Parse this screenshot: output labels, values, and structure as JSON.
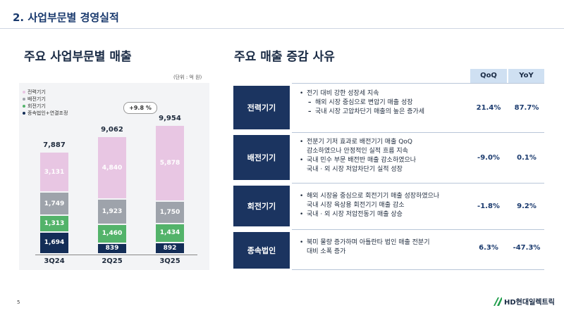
{
  "header": {
    "title": "2. 사업부문별 경영실적"
  },
  "left": {
    "title": "주요 사업부문별 매출",
    "unit": "(단위 : 억 원)",
    "growth_badge": "+9.8 %"
  },
  "right": {
    "title": "주요 매출 증감 사유",
    "col_qoq": "QoQ",
    "col_yoy": "YoY"
  },
  "chart_data": {
    "type": "bar",
    "stacked": true,
    "categories": [
      "3Q24",
      "2Q25",
      "3Q25"
    ],
    "totals": [
      "7,887",
      "9,062",
      "9,954"
    ],
    "series": [
      {
        "name": "종속법인+연결조정",
        "color": "#132d57",
        "values": [
          1694,
          839,
          892
        ],
        "labels": [
          "1,694",
          "839",
          "892"
        ]
      },
      {
        "name": "회전기기",
        "color": "#53b36a",
        "values": [
          1313,
          1460,
          1434
        ],
        "labels": [
          "1,313",
          "1,460",
          "1,434"
        ]
      },
      {
        "name": "배전기기",
        "color": "#9ea3ab",
        "values": [
          1749,
          1923,
          1750
        ],
        "labels": [
          "1,749",
          "1,923",
          "1,750"
        ]
      },
      {
        "name": "전력기기",
        "color": "#e8c6e3",
        "values": [
          3131,
          4840,
          5878
        ],
        "labels": [
          "3,131",
          "4,840",
          "5,878"
        ]
      }
    ],
    "legend": [
      "전력기기",
      "배전기기",
      "회전기기",
      "종속법인+연결조정"
    ]
  },
  "rows": [
    {
      "label": "전력기기",
      "bullets": [
        {
          "text": "전기 대비 강한 성장세 지속",
          "subs": [
            "해외 시장 중심으로 변압기 매출 성장",
            "국내 시장 고압차단기 매출의 높은 증가세"
          ]
        }
      ],
      "qoq": "21.4%",
      "yoy": "87.7%"
    },
    {
      "label": "배전기기",
      "bullets": [
        {
          "lines": [
            "전분기 기저 효과로 배전기기 매출 QoQ",
            "감소하였으나 안정적인 실적 흐름 지속"
          ]
        },
        {
          "lines": [
            "국내 민수 부문 배전반 매출 감소하였으나",
            "국내 · 외 시장 저압차단기 실적 성장"
          ]
        }
      ],
      "qoq": "-9.0%",
      "yoy": "0.1%"
    },
    {
      "label": "회전기기",
      "bullets": [
        {
          "lines": [
            "해외 시장을 중심으로 회전기기 매출 성장하였으나",
            "국내 시장 육상용 회전기기 매출 감소"
          ]
        },
        {
          "lines": [
            "국내 · 외 시장 저압전동기 매출 상승"
          ]
        }
      ],
      "qoq": "-1.8%",
      "yoy": "9.2%"
    },
    {
      "label": "종속법인",
      "bullets": [
        {
          "lines": [
            "북미 물량 증가하며 아틀란타 법인 매출 전분기",
            "대비 소폭 증가"
          ]
        }
      ],
      "qoq": "6.3%",
      "yoy": "-47.3%"
    }
  ],
  "footer": {
    "page": "5",
    "logo_text": "HD현대일렉트릭"
  }
}
